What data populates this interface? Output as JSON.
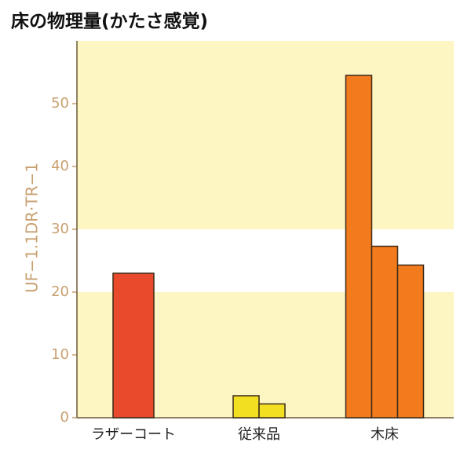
{
  "chart_data": {
    "type": "grouped-bar",
    "title": "床の物理量(かたさ感覚)",
    "y_label": "UF−1.1DR·TR−1",
    "ylim": [
      0,
      60
    ],
    "yticks": [
      0,
      10,
      20,
      30,
      40,
      50
    ],
    "highlight_band": [
      20,
      30
    ],
    "groups": [
      {
        "category": "ラザーコート",
        "color": "#ea4a2c",
        "values": [
          23
        ]
      },
      {
        "category": "従来品",
        "color": "#f3df22",
        "values": [
          3.5,
          2.2
        ]
      },
      {
        "category": "木床",
        "color": "#f27b1e",
        "values": [
          54.5,
          27.3,
          24.3
        ]
      }
    ]
  }
}
